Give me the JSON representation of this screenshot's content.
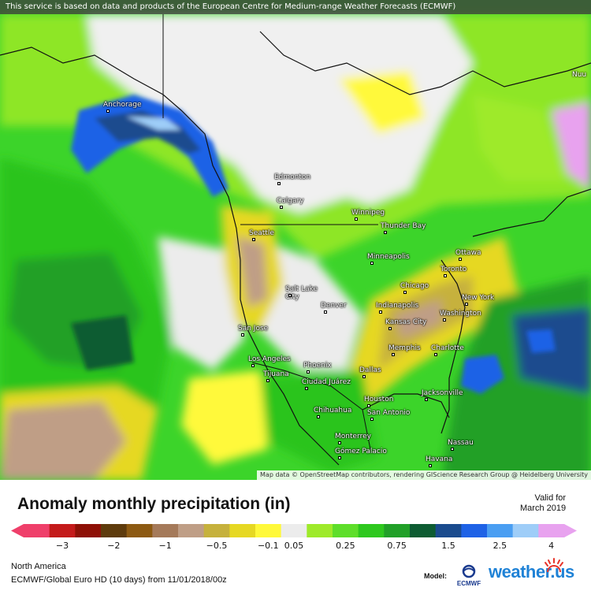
{
  "banner": "This service is based on data and products of the European Centre for Medium-range Weather Forecasts (ECMWF)",
  "attribution": "Map data © OpenStreetMap contributors, rendering GIScience Research Group @ Heidelberg University",
  "edge_label": "Nuu",
  "cities": [
    {
      "name": "Anchorage"
    },
    {
      "name": "Edmonton"
    },
    {
      "name": "Calgary"
    },
    {
      "name": "Winnipeg"
    },
    {
      "name": "Thunder Bay"
    },
    {
      "name": "Seattle"
    },
    {
      "name": "Minneapolis"
    },
    {
      "name": "Ottawa"
    },
    {
      "name": "Toronto"
    },
    {
      "name": "Chicago"
    },
    {
      "name": "New York"
    },
    {
      "name": "Salt Lake City"
    },
    {
      "name": "Denver"
    },
    {
      "name": "Indianapolis"
    },
    {
      "name": "Kansas City"
    },
    {
      "name": "Washington"
    },
    {
      "name": "San Jose"
    },
    {
      "name": "Memphis"
    },
    {
      "name": "Charlotte"
    },
    {
      "name": "Los Angeles"
    },
    {
      "name": "Phoenix"
    },
    {
      "name": "Tijuana"
    },
    {
      "name": "Dallas"
    },
    {
      "name": "Ciudad Juárez"
    },
    {
      "name": "Jacksonville"
    },
    {
      "name": "Houston"
    },
    {
      "name": "Chihuahua"
    },
    {
      "name": "San Antonio"
    },
    {
      "name": "Monterrey"
    },
    {
      "name": "Nassau"
    },
    {
      "name": "Gómez Palacio"
    },
    {
      "name": "Havana"
    }
  ],
  "title": "Anomaly monthly precipitation (in)",
  "valid_for": {
    "label": "Valid for",
    "date": "March 2019"
  },
  "legend": {
    "colors": [
      "#ef3f6a",
      "#c41a1a",
      "#8e1006",
      "#5e3b0c",
      "#8d5a12",
      "#a57a5a",
      "#bf9e86",
      "#c6b13c",
      "#e6d823",
      "#fff93a",
      "#ececec",
      "#9eea2a",
      "#5ede2a",
      "#2ec81e",
      "#21a028",
      "#0d5c32",
      "#1a4b8e",
      "#1e62e6",
      "#4a9ef2",
      "#9ecdf8",
      "#e8a2ef"
    ],
    "ticks": [
      "−3",
      "−2",
      "−1",
      "−0.5",
      "−0.1",
      "0.05",
      "0.25",
      "0.75",
      "1.5",
      "2.5",
      "4"
    ]
  },
  "region": "North America",
  "model_line": "ECMWF/Global Euro HD (10 days) from 11/01/2018/00z",
  "model_tag": "Model:",
  "ecmwf_label": "ECMWF",
  "brand": "weather.us"
}
